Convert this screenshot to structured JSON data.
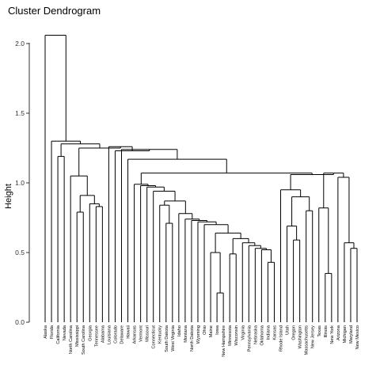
{
  "chart_data": {
    "type": "dendrogram",
    "title": "Cluster Dendrogram",
    "xlabel": "",
    "ylabel": "Height",
    "ylim": [
      0,
      2.05
    ],
    "y_ticks": [
      "0.0",
      "0.5",
      "1.0",
      "1.5",
      "2.0"
    ],
    "y_tick_values": [
      0,
      0.5,
      1.0,
      1.5,
      2.0
    ],
    "grid": false,
    "legend": "none",
    "labels": [
      "Alaska",
      "Florida",
      "California",
      "Nevada",
      "North Carolina",
      "Mississippi",
      "South Carolina",
      "Georgia",
      "Tennessee",
      "Alabama",
      "Louisiana",
      "Colorado",
      "Delaware",
      "Hawaii",
      "Arkansas",
      "Vermont",
      "Missouri",
      "Connecticut",
      "Kentucky",
      "South Dakota",
      "West Virginia",
      "Idaho",
      "Montana",
      "North Dakota",
      "Wyoming",
      "Ohio",
      "Maine",
      "Iowa",
      "New Hampshire",
      "Minnesota",
      "Wisconsin",
      "Virginia",
      "Pennsylvania",
      "Nebraska",
      "Oklahoma",
      "Indiana",
      "Kansas",
      "Rhode Island",
      "Utah",
      "Oregon",
      "Washington",
      "Massachusetts",
      "New Jersey",
      "Texas",
      "Illinois",
      "New York",
      "Arizona",
      "Michigan",
      "Maryland",
      "New Mexico"
    ],
    "merges": [
      {
        "a": "Iowa",
        "b": "New Hampshire",
        "height": 0.21
      },
      {
        "a": "North Dakota|Wyoming",
        "b": "Ohio",
        "height": 0.72
      },
      {
        "a": "Idaho",
        "b": "Montana",
        "height": 0.74
      },
      {
        "a": "Kentucky",
        "b": "South Dakota",
        "height": 0.86
      },
      {
        "a": "Illinois",
        "b": "New York",
        "height": 0.35
      },
      {
        "a": "Maryland",
        "b": "New Mexico",
        "height": 0.53
      },
      {
        "a": "Michigan",
        "b": "Maryland|New Mexico",
        "height": 0.57
      },
      {
        "a": "Arizona",
        "b": "Michigan|Maryland|New Mexico",
        "height": 1.04
      },
      {
        "a": "Texas",
        "b": "Illinois|New York",
        "height": 0.82
      },
      {
        "a": "Texas|Illinois|New York",
        "b": "Arizona|Michigan|Maryland|New Mexico",
        "height": 1.07
      },
      {
        "a": "Indiana",
        "b": "Kansas",
        "height": 0.43
      },
      {
        "a": "Minnesota",
        "b": "Wisconsin",
        "height": 0.49
      },
      {
        "a": "Oregon",
        "b": "Washington",
        "height": 0.59
      },
      {
        "a": "Utah",
        "b": "Oregon|Washington",
        "height": 0.69
      },
      {
        "a": "Massachusetts",
        "b": "New Jersey",
        "height": 0.8
      },
      {
        "a": "California",
        "b": "Nevada",
        "height": 1.19
      },
      {
        "a": "Tennessee",
        "b": "Alabama",
        "height": 0.83
      },
      {
        "a": "Georgia",
        "b": "Tennessee|Alabama",
        "height": 0.85
      },
      {
        "a": "Mississippi",
        "b": "South Carolina",
        "height": 0.79
      },
      {
        "a": "Alaska",
        "b": "Florida",
        "height": 2.06
      }
    ]
  }
}
